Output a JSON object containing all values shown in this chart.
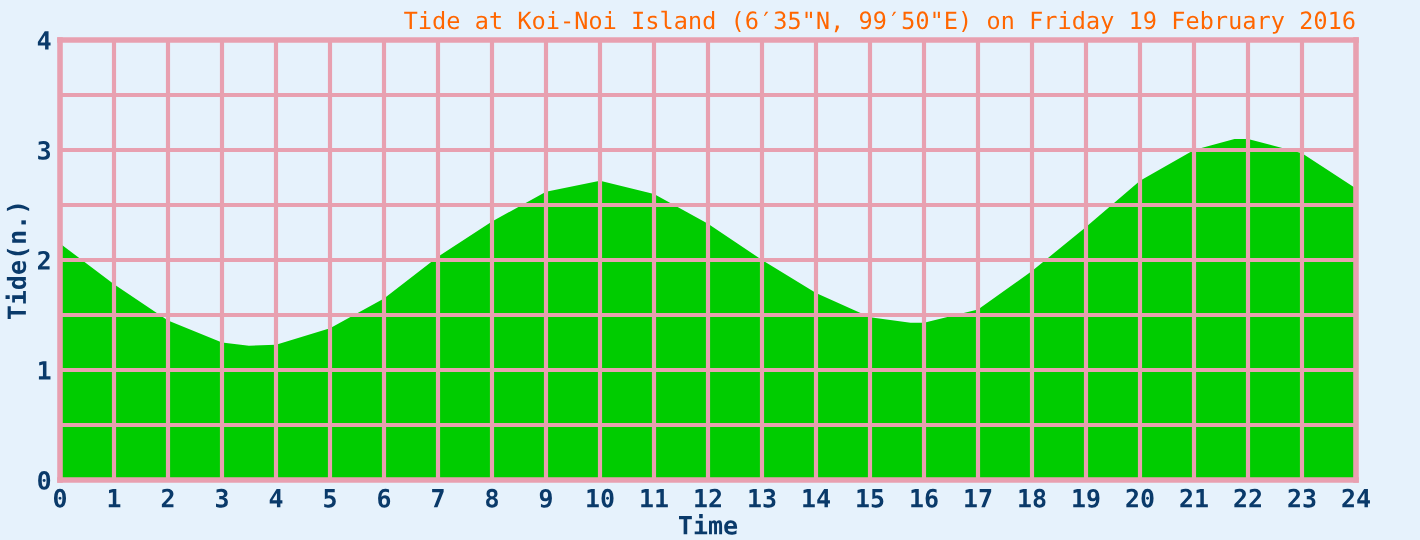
{
  "chart_data": {
    "type": "area",
    "title": "Tide at Koi-Noi Island (6′35\"N, 99′50\"E) on Friday 19 February 2016",
    "xlabel": "Time",
    "ylabel": "Tide(n.)",
    "x": [
      0,
      1,
      2,
      3,
      3.5,
      4,
      5,
      6,
      7,
      8,
      9,
      10,
      11,
      12,
      13,
      14,
      15,
      15.75,
      16,
      17,
      18,
      19,
      20,
      21,
      21.75,
      22,
      23,
      24
    ],
    "series": [
      {
        "color": "#00cc00",
        "values": [
          2.15,
          1.78,
          1.45,
          1.25,
          1.22,
          1.23,
          1.38,
          1.65,
          2.03,
          2.35,
          2.62,
          2.72,
          2.6,
          2.33,
          2.0,
          1.7,
          1.48,
          1.43,
          1.43,
          1.55,
          1.9,
          2.3,
          2.72,
          3.0,
          3.1,
          3.1,
          2.97,
          2.65
        ]
      }
    ],
    "xlim": [
      0,
      24
    ],
    "xticks": [
      0,
      1,
      2,
      3,
      4,
      5,
      6,
      7,
      8,
      9,
      10,
      11,
      12,
      13,
      14,
      15,
      16,
      17,
      18,
      19,
      20,
      21,
      22,
      23,
      24
    ],
    "ylim": [
      0,
      4
    ],
    "yticks": [
      0,
      {
        "value": 0.5,
        "label": null
      },
      1,
      {
        "value": 1.5,
        "label": null
      },
      2,
      {
        "value": 2.5,
        "label": null
      },
      3,
      {
        "value": 3.5,
        "label": null
      },
      4
    ],
    "grid": true
  }
}
